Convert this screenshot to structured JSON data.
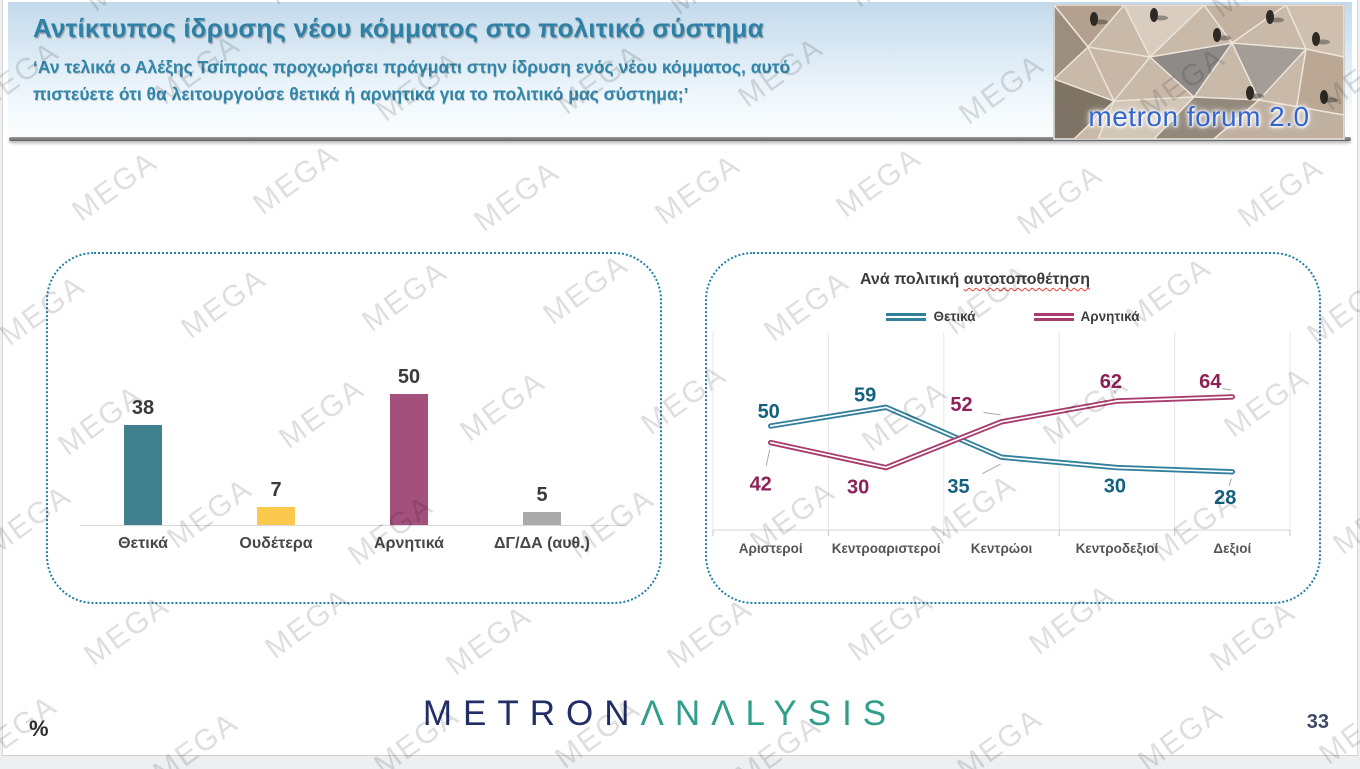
{
  "header": {
    "title": "Αντίκτυπος ίδρυσης νέου κόμματος στο πολιτικό σύστημα",
    "subtitle_lines": [
      "‘Αν τελικά ο Αλέξης Τσίπρας προχωρήσει πράγματι στην ίδρυση ενός νέου κόμματος, αυτό",
      "πιστεύετε ότι θα λειτουργούσε θετικά ή αρνητικά για το πολιτικό μας σύστημα;’"
    ],
    "logo_text": "metron forum 2.0"
  },
  "watermark": {
    "text": "MEGA"
  },
  "footer": {
    "brand_metron": "METRON",
    "brand_analysis": "ΛNΛLYSIS",
    "percent_symbol": "%",
    "page_number": "33"
  },
  "colors": {
    "panel_border": "#2280a8",
    "header_text": "#2e81a6",
    "bar_positive": "#41808f",
    "bar_neutral": "#fcc94f",
    "bar_negative": "#a3517c",
    "bar_dk": "#aaaaaa",
    "line_positive": "#33809c",
    "line_negative": "#a73c6d",
    "brand_navy": "#232d66",
    "brand_teal": "#2f9e8a"
  },
  "chart_data": [
    {
      "type": "bar",
      "title": "",
      "categories": [
        "Θετικά",
        "Ουδέτερα",
        "Αρνητικά",
        "ΔΓ/ΔΑ (αυθ.)"
      ],
      "values": [
        38,
        7,
        50,
        5
      ],
      "bar_colors": [
        "#41808f",
        "#fcc94f",
        "#a3517c",
        "#aaaaaa"
      ],
      "xlabel": "",
      "ylabel": "",
      "ylim": [
        0,
        55
      ],
      "grid": false,
      "data_labels": true
    },
    {
      "type": "line",
      "title": "Ανά πολιτική αυτοτοποθέτηση",
      "title_plain": "Ανά πολιτική ",
      "title_underlined": "αυτοτοποθέτηση",
      "categories": [
        "Αριστεροί",
        "Κεντροαριστεροί",
        "Κεντρώοι",
        "Κεντροδεξιοί",
        "Δεξιοί"
      ],
      "series": [
        {
          "name": "Θετικά",
          "values": [
            50,
            59,
            35,
            30,
            28
          ],
          "color": "#33809c",
          "label_color": "#14617f"
        },
        {
          "name": "Αρνητικά",
          "values": [
            42,
            30,
            52,
            62,
            64
          ],
          "color": "#a73c6d",
          "label_color": "#8d2158"
        }
      ],
      "xlabel": "",
      "ylabel": "",
      "ylim": [
        0,
        95
      ],
      "grid": true,
      "legend_position": "top",
      "data_labels": true
    }
  ]
}
